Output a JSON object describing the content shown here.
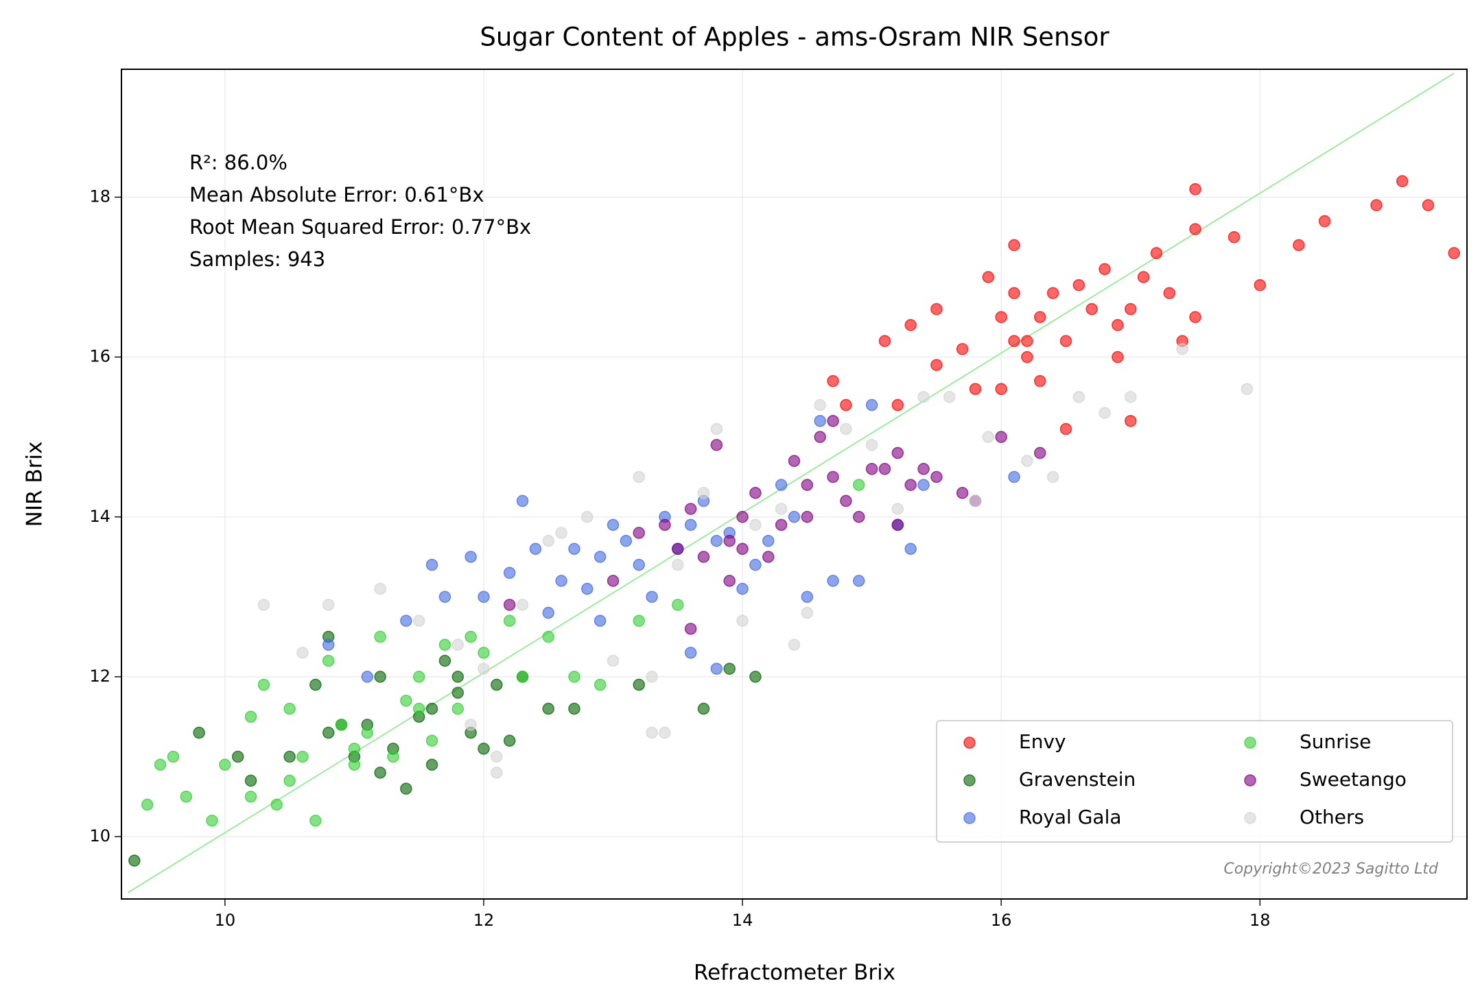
{
  "chart_data": {
    "type": "scatter",
    "title": "Sugar Content of Apples - ams-Osram NIR Sensor",
    "x_label": "Refractometer Brix",
    "y_label": "NIR Brix",
    "annotations": [
      "R²: 86.0%",
      "Mean Absolute Error: 0.61°Bx",
      "Root Mean Squared Error: 0.77°Bx",
      "Samples: 943"
    ],
    "copyright": "Copyright©2023  Sagitto  Ltd",
    "xlim": [
      9.2,
      19.6
    ],
    "ylim": [
      9.22,
      19.6
    ],
    "xticks": [
      10,
      12,
      14,
      16,
      18
    ],
    "yticks": [
      10,
      12,
      14,
      16,
      18
    ],
    "grid": true,
    "legend_loc": "lower right",
    "reference_line": {
      "x": [
        9.25,
        19.5
      ],
      "values": [
        9.3,
        19.55
      ],
      "color": "#90ee90"
    },
    "series": [
      {
        "name": "Envy",
        "color": "#ff0000",
        "x": [
          15.1,
          15.3,
          15.5,
          15.7,
          15.8,
          15.9,
          16.0,
          16.1,
          16.1,
          16.2,
          16.3,
          16.3,
          16.4,
          16.5,
          16.6,
          16.7,
          16.8,
          16.9,
          17.0,
          17.1,
          17.2,
          17.3,
          17.4,
          17.5,
          17.5,
          17.8,
          18.0,
          18.3,
          18.5,
          18.9,
          19.1,
          19.3,
          19.5,
          17.0,
          16.5,
          16.0,
          15.5,
          14.8,
          14.7,
          16.1,
          17.5,
          16.2,
          15.2,
          16.9
        ],
        "values": [
          16.2,
          16.4,
          16.6,
          16.1,
          15.6,
          17.0,
          16.5,
          17.4,
          16.2,
          16.0,
          16.5,
          15.7,
          16.8,
          16.2,
          16.9,
          16.6,
          17.1,
          16.4,
          15.2,
          17.0,
          17.3,
          16.8,
          16.2,
          18.1,
          17.6,
          17.5,
          16.9,
          17.4,
          17.7,
          17.9,
          18.2,
          17.9,
          17.3,
          16.6,
          15.1,
          15.6,
          15.9,
          15.4,
          15.7,
          16.8,
          16.5,
          16.2,
          15.4,
          16.0
        ]
      },
      {
        "name": "Gravenstein",
        "color": "#006400",
        "x": [
          9.3,
          9.8,
          10.1,
          10.2,
          10.5,
          10.7,
          10.8,
          10.8,
          11.0,
          11.1,
          11.2,
          11.3,
          11.4,
          11.5,
          11.6,
          11.6,
          11.7,
          11.8,
          11.9,
          12.0,
          12.1,
          12.2,
          12.5,
          12.7,
          13.2,
          13.7,
          13.9,
          14.1,
          11.2,
          10.9,
          11.8,
          12.3
        ],
        "values": [
          9.7,
          11.3,
          11.0,
          10.7,
          11.0,
          11.9,
          12.5,
          11.3,
          11.0,
          11.4,
          12.0,
          11.1,
          10.6,
          11.5,
          10.9,
          11.6,
          12.2,
          11.8,
          11.3,
          11.1,
          11.9,
          11.2,
          11.6,
          11.6,
          11.9,
          11.6,
          12.1,
          12.0,
          10.8,
          11.4,
          12.0,
          12.0
        ]
      },
      {
        "name": "Royal Gala",
        "color": "#4169e1",
        "x": [
          10.8,
          11.1,
          11.4,
          11.6,
          11.7,
          11.9,
          12.0,
          12.2,
          12.3,
          12.4,
          12.5,
          12.6,
          12.7,
          12.8,
          12.9,
          13.0,
          13.1,
          13.2,
          13.3,
          13.4,
          13.5,
          13.6,
          13.7,
          13.8,
          13.9,
          14.0,
          14.1,
          14.2,
          14.3,
          14.5,
          14.6,
          14.7,
          14.9,
          15.0,
          15.2,
          15.3,
          15.4,
          16.1,
          13.8,
          12.9,
          14.4,
          13.6
        ],
        "values": [
          12.4,
          12.0,
          12.7,
          13.4,
          13.0,
          13.5,
          13.0,
          13.3,
          14.2,
          13.6,
          12.8,
          13.2,
          13.6,
          13.1,
          13.5,
          13.9,
          13.7,
          13.4,
          13.0,
          14.0,
          13.6,
          12.3,
          14.2,
          13.7,
          13.8,
          13.1,
          13.4,
          13.7,
          14.4,
          13.0,
          15.2,
          13.2,
          13.2,
          15.4,
          13.9,
          13.6,
          14.4,
          14.5,
          12.1,
          12.7,
          14.0,
          13.9
        ]
      },
      {
        "name": "Sunrise",
        "color": "#32cd32",
        "x": [
          9.4,
          9.6,
          9.7,
          9.9,
          10.0,
          10.2,
          10.3,
          10.4,
          10.5,
          10.6,
          10.7,
          10.8,
          10.9,
          11.0,
          11.1,
          11.2,
          11.3,
          11.4,
          11.5,
          11.6,
          11.7,
          11.8,
          11.9,
          12.0,
          12.2,
          12.3,
          12.5,
          12.7,
          12.9,
          13.2,
          13.5,
          14.9,
          10.2,
          10.5,
          11.0,
          11.5,
          9.5
        ],
        "values": [
          10.4,
          11.0,
          10.5,
          10.2,
          10.9,
          11.5,
          11.9,
          10.4,
          11.6,
          11.0,
          10.2,
          12.2,
          11.4,
          10.9,
          11.3,
          12.5,
          11.0,
          11.7,
          12.0,
          11.2,
          12.4,
          11.6,
          12.5,
          12.3,
          12.7,
          12.0,
          12.5,
          12.0,
          11.9,
          12.7,
          12.9,
          14.4,
          10.5,
          10.7,
          11.1,
          11.6,
          10.9
        ]
      },
      {
        "name": "Sweetango",
        "color": "#800080",
        "x": [
          12.2,
          13.0,
          13.2,
          13.4,
          13.5,
          13.6,
          13.7,
          13.8,
          13.9,
          14.0,
          14.1,
          14.2,
          14.3,
          14.4,
          14.5,
          14.6,
          14.7,
          14.8,
          14.9,
          15.0,
          15.1,
          15.2,
          15.3,
          15.4,
          15.5,
          15.7,
          15.8,
          16.0,
          16.3,
          13.9,
          14.7,
          15.2,
          14.0,
          13.6,
          14.5
        ],
        "values": [
          12.9,
          13.2,
          13.8,
          13.9,
          13.6,
          12.6,
          13.5,
          14.9,
          13.2,
          14.0,
          14.3,
          13.5,
          13.9,
          14.7,
          14.4,
          15.0,
          14.5,
          14.2,
          14.0,
          14.6,
          14.6,
          14.8,
          14.4,
          14.6,
          14.5,
          14.3,
          14.2,
          15.0,
          14.8,
          13.7,
          15.2,
          13.9,
          13.6,
          14.1,
          14.0
        ]
      },
      {
        "name": "Others",
        "color": "#d3d3d3",
        "x": [
          10.3,
          10.6,
          10.8,
          11.2,
          11.5,
          11.8,
          12.0,
          12.1,
          12.3,
          12.5,
          12.6,
          12.8,
          13.0,
          13.2,
          13.3,
          13.4,
          13.5,
          13.7,
          13.8,
          14.0,
          14.1,
          14.3,
          14.5,
          14.6,
          14.8,
          15.0,
          15.2,
          15.4,
          15.6,
          15.8,
          15.9,
          16.2,
          16.4,
          16.6,
          16.8,
          17.0,
          17.4,
          17.9,
          13.3,
          11.9,
          12.1,
          14.4
        ],
        "values": [
          12.9,
          12.3,
          12.9,
          13.1,
          12.7,
          12.4,
          12.1,
          10.8,
          12.9,
          13.7,
          13.8,
          14.0,
          12.2,
          14.5,
          12.0,
          11.3,
          13.4,
          14.3,
          15.1,
          12.7,
          13.9,
          14.1,
          12.8,
          15.4,
          15.1,
          14.9,
          14.1,
          15.5,
          15.5,
          14.2,
          15.0,
          14.7,
          14.5,
          15.5,
          15.3,
          15.5,
          16.1,
          15.6,
          11.3,
          11.4,
          11.0,
          12.4
        ]
      }
    ]
  }
}
